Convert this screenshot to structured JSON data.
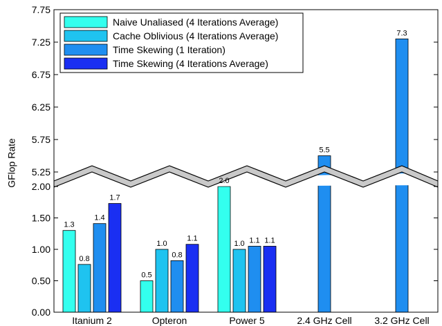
{
  "chart_data": {
    "type": "bar",
    "ylabel": "GFlop Rate",
    "xlabel": "",
    "title": "",
    "axis_break": {
      "lower_max": 2.0,
      "upper_min": 5.0
    },
    "ytick_labels_lower": [
      "0.00",
      "0.50",
      "1.00",
      "1.50",
      "2.00"
    ],
    "ytick_labels_upper": [
      "5.25",
      "5.75",
      "6.25",
      "6.75",
      "7.25",
      "7.75"
    ],
    "categories": [
      "Itanium 2",
      "Opteron",
      "Power 5",
      "2.4 GHz Cell",
      "3.2 GHz Cell"
    ],
    "legend_position": "top-left",
    "grid": false,
    "series": [
      {
        "name": "Naive Unaliased (4 Iterations Average)",
        "color": "#33ffee",
        "values": [
          1.3,
          0.5,
          2.0,
          null,
          null
        ],
        "labels": [
          "1.3",
          "0.5",
          "2.0",
          "",
          ""
        ]
      },
      {
        "name": "Cache Oblivious (4 Iterations Average)",
        "color": "#1fc3f0",
        "values": [
          0.76,
          1.0,
          1.0,
          null,
          null
        ],
        "labels": [
          "0.8",
          "1.0",
          "1.0",
          "",
          ""
        ]
      },
      {
        "name": "Time Skewing (1 Iteration)",
        "color": "#1f8ef0",
        "values": [
          1.41,
          0.82,
          1.05,
          5.5,
          7.3
        ],
        "labels": [
          "1.4",
          "0.8",
          "1.1",
          "5.5",
          "7.3"
        ]
      },
      {
        "name": "Time Skewing (4 Iterations Average)",
        "color": "#1a2ff2",
        "values": [
          1.73,
          1.08,
          1.05,
          null,
          null
        ],
        "labels": [
          "1.7",
          "1.1",
          "1.1",
          "",
          ""
        ]
      }
    ]
  }
}
